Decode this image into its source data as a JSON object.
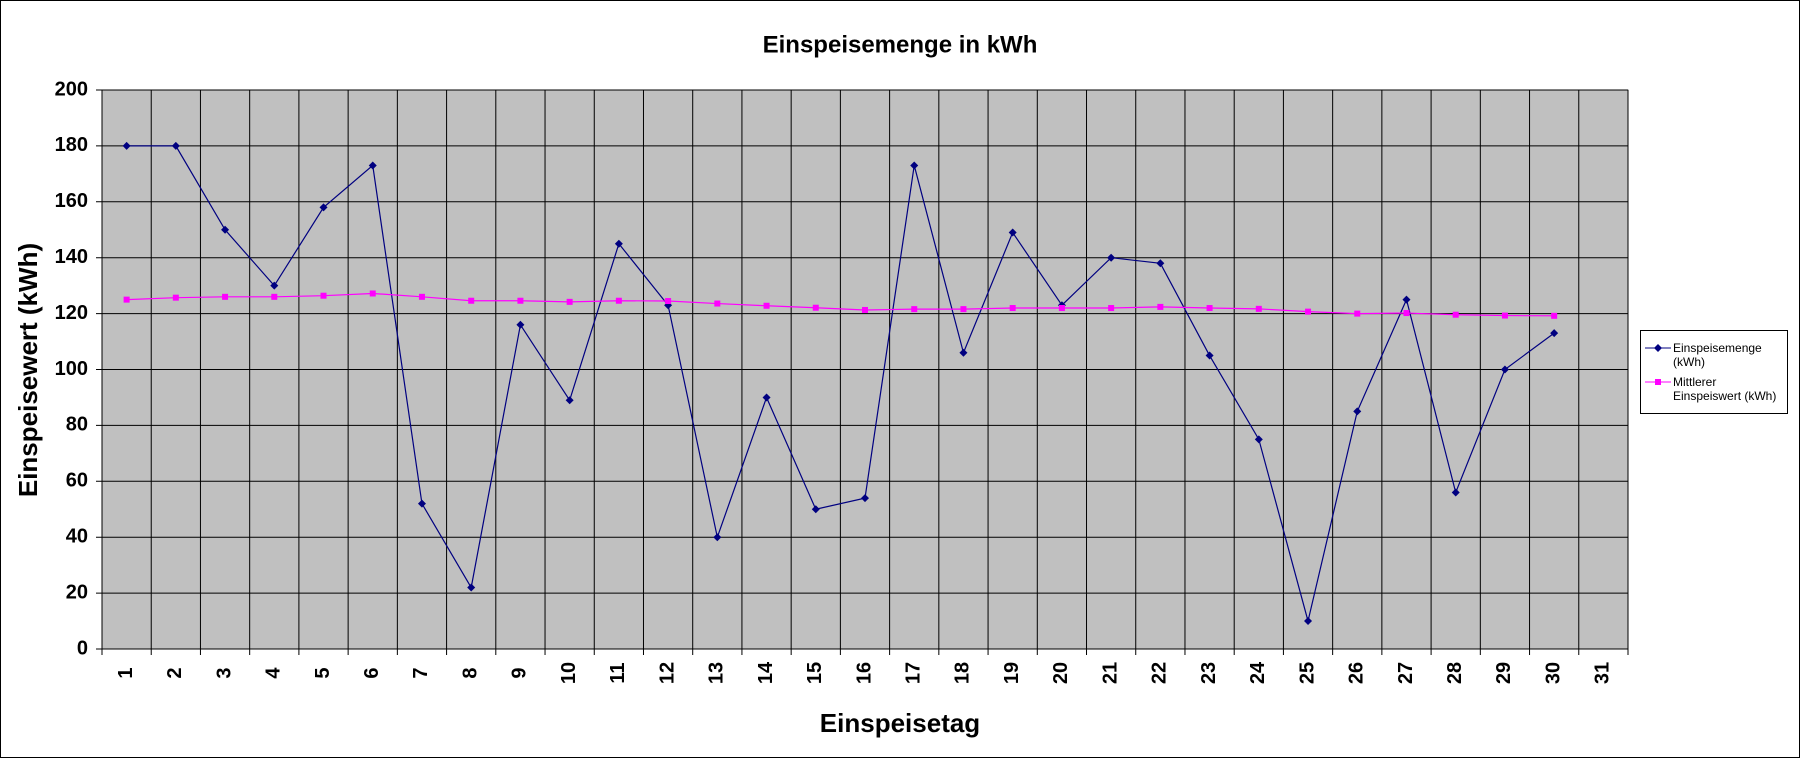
{
  "chart_data": {
    "type": "line",
    "title": "Einspeisemenge in kWh",
    "x_label": "Einspeisetag",
    "y_label": "Einspeisewert  (kWh)",
    "categories": [
      "1",
      "2",
      "3",
      "4",
      "5",
      "6",
      "7",
      "8",
      "9",
      "10",
      "11",
      "12",
      "13",
      "14",
      "15",
      "16",
      "17",
      "18",
      "19",
      "20",
      "21",
      "22",
      "23",
      "24",
      "25",
      "26",
      "27",
      "28",
      "29",
      "30",
      "31"
    ],
    "series": [
      {
        "name": "Einspeisemenge (kWh)",
        "color": "#000080",
        "marker": "diamond",
        "values": [
          180,
          180,
          150,
          130,
          158,
          173,
          52,
          22,
          116,
          89,
          145,
          123,
          40,
          90,
          50,
          54,
          173,
          106,
          149,
          123,
          140,
          138,
          105,
          75,
          10,
          85,
          125,
          56,
          100,
          113,
          null
        ]
      },
      {
        "name": "Mittlerer Einspeiswert (kWh)",
        "color": "#ff00ff",
        "marker": "square",
        "values": [
          125,
          125.7,
          126,
          126,
          126.4,
          127.2,
          126,
          124.6,
          124.6,
          124.2,
          124.6,
          124.5,
          123.6,
          122.8,
          122.1,
          121.3,
          121.6,
          121.6,
          122,
          122,
          122,
          122.4,
          122,
          121.7,
          120.7,
          120,
          120.2,
          119.6,
          119.3,
          119.2,
          null
        ]
      }
    ],
    "ylim": [
      0,
      200
    ],
    "yticks": [
      0,
      20,
      40,
      60,
      80,
      100,
      120,
      140,
      160,
      180,
      200
    ],
    "grid": true,
    "legend": "right"
  }
}
